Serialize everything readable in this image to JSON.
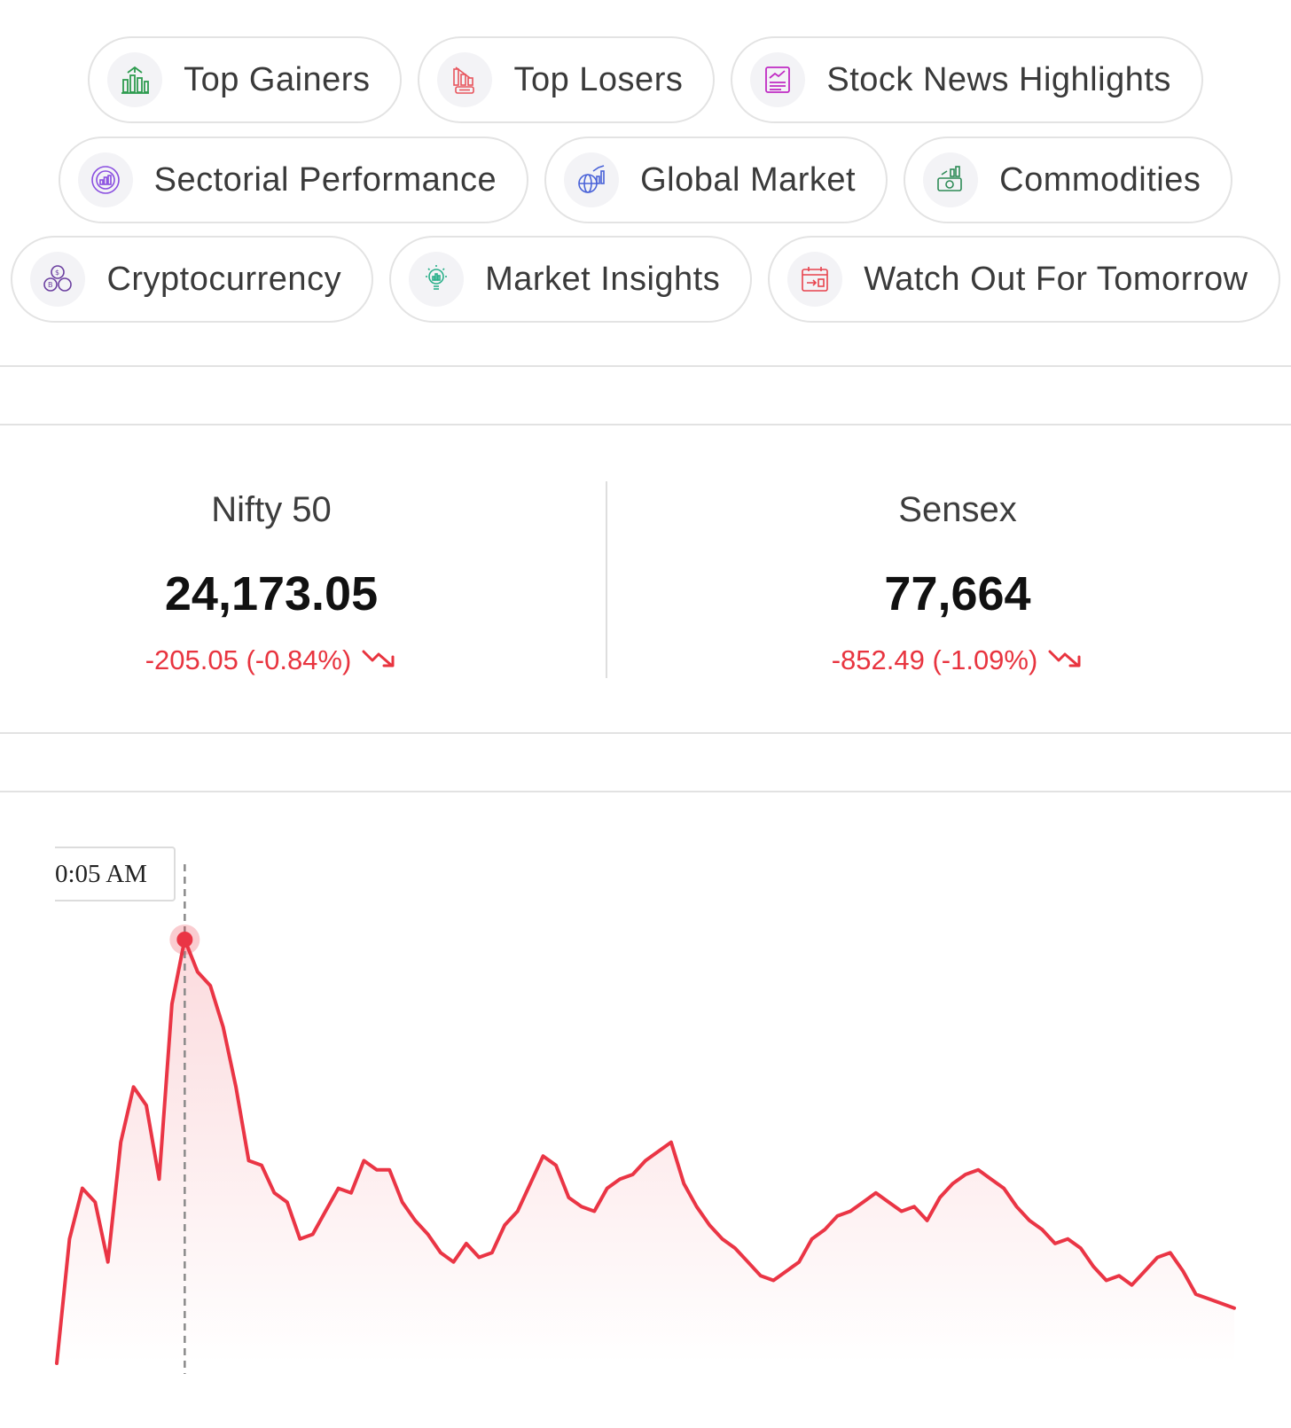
{
  "quick_links": {
    "rows": [
      [
        {
          "label": "Top Gainers",
          "icon": "top-gainers-icon",
          "color": "#2e9b4f"
        },
        {
          "label": "Top Losers",
          "icon": "top-losers-icon",
          "color": "#e8555d"
        },
        {
          "label": "Stock News Highlights",
          "icon": "stock-news-icon",
          "color": "#c02bc4"
        }
      ],
      [
        {
          "label": "Sectorial Performance",
          "icon": "sectorial-performance-icon",
          "color": "#8a4fe0"
        },
        {
          "label": "Global Market",
          "icon": "global-market-icon",
          "color": "#4a63d8"
        },
        {
          "label": "Commodities",
          "icon": "commodities-icon",
          "color": "#2e8b57"
        }
      ],
      [
        {
          "label": "Cryptocurrency",
          "icon": "cryptocurrency-icon",
          "color": "#6b3fa0"
        },
        {
          "label": "Market Insights",
          "icon": "market-insights-icon",
          "color": "#2bb08a"
        },
        {
          "label": "Watch Out For Tomorrow",
          "icon": "watch-out-icon",
          "color": "#e8434d"
        }
      ]
    ]
  },
  "indices": {
    "nifty": {
      "name": "Nifty 50",
      "value": "24,173.05",
      "change": "-205.05 (-0.84%)",
      "trend_icon": "trend-down-icon"
    },
    "sensex": {
      "name": "Sensex",
      "value": "77,664",
      "change": "-852.49 (-1.09%)",
      "trend_icon": "trend-down-icon"
    }
  },
  "colors": {
    "negative": "#e8343f",
    "line": "#ea3545"
  },
  "chart": {
    "tooltip_time": "0:05 AM"
  },
  "chart_data": {
    "type": "line",
    "title": "",
    "xlabel": "",
    "ylabel": "",
    "grid": false,
    "highlight_index": 10,
    "series": [
      {
        "values": [
          0.0,
          0.27,
          0.38,
          0.35,
          0.22,
          0.48,
          0.6,
          0.56,
          0.4,
          0.78,
          0.92,
          0.85,
          0.82,
          0.73,
          0.6,
          0.44,
          0.43,
          0.37,
          0.35,
          0.27,
          0.28,
          0.33,
          0.38,
          0.37,
          0.44,
          0.42,
          0.42,
          0.35,
          0.31,
          0.28,
          0.24,
          0.22,
          0.26,
          0.23,
          0.24,
          0.3,
          0.33,
          0.39,
          0.45,
          0.43,
          0.36,
          0.34,
          0.33,
          0.38,
          0.4,
          0.41,
          0.44,
          0.46,
          0.48,
          0.39,
          0.34,
          0.3,
          0.27,
          0.25,
          0.22,
          0.19,
          0.18,
          0.2,
          0.22,
          0.27,
          0.29,
          0.32,
          0.33,
          0.35,
          0.37,
          0.35,
          0.33,
          0.34,
          0.31,
          0.36,
          0.39,
          0.41,
          0.42,
          0.4,
          0.38,
          0.34,
          0.31,
          0.29,
          0.26,
          0.27,
          0.25,
          0.21,
          0.18,
          0.19,
          0.17,
          0.2,
          0.23,
          0.24,
          0.2,
          0.15,
          0.14,
          0.13,
          0.12
        ]
      }
    ]
  }
}
